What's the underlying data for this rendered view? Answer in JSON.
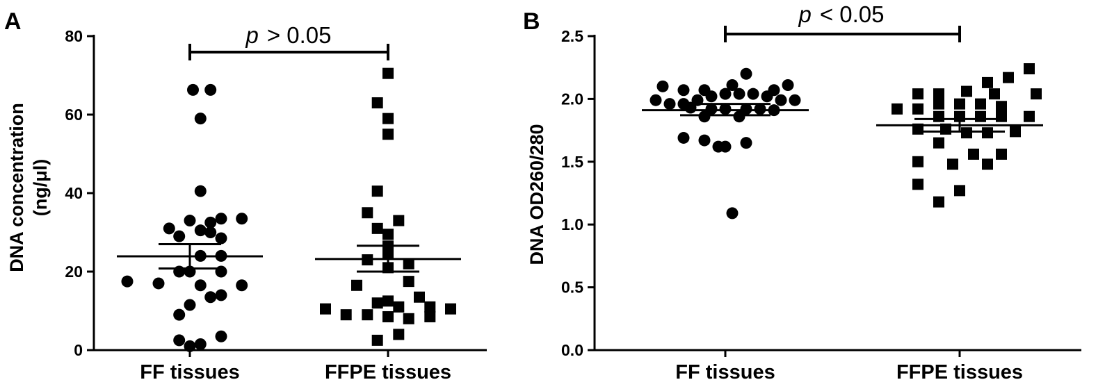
{
  "colors": {
    "marker": "#000000",
    "background": "#ffffff"
  },
  "chart_data": [
    {
      "type": "scatter",
      "panel_label": "A",
      "title": "",
      "ylabel_line1": "DNA concentration",
      "ylabel_line2": "(ng/μl)",
      "ylim": [
        0,
        80
      ],
      "yticks": [
        0,
        20,
        40,
        60,
        80
      ],
      "categories": [
        "FF tissues",
        "FFPE tissues"
      ],
      "significance": {
        "p": "p",
        "text": "> 0.05"
      },
      "series": [
        {
          "category": "FF tissues",
          "marker": "circle",
          "mean": 23.9,
          "sem": [
            20.8,
            27.0
          ],
          "points": [
            [
              0.05,
              66.3
            ],
            [
              0.33,
              66.3
            ],
            [
              0.17,
              59.0
            ],
            [
              0.17,
              40.5
            ],
            [
              0.0,
              33.0
            ],
            [
              0.5,
              33.5
            ],
            [
              0.33,
              32.5
            ],
            [
              0.17,
              30.5
            ],
            [
              0.33,
              30.0
            ],
            [
              -0.17,
              29.0
            ],
            [
              -0.33,
              31.0
            ],
            [
              0.5,
              28.5
            ],
            [
              0.83,
              33.5
            ],
            [
              0.17,
              24.0
            ],
            [
              0.5,
              24.0
            ],
            [
              -0.17,
              20.0
            ],
            [
              0.0,
              20.0
            ],
            [
              0.5,
              20.0
            ],
            [
              -1.0,
              17.5
            ],
            [
              -0.5,
              17.0
            ],
            [
              0.17,
              16.5
            ],
            [
              0.83,
              16.5
            ],
            [
              0.33,
              13.5
            ],
            [
              0.5,
              14.0
            ],
            [
              0.0,
              11.5
            ],
            [
              -0.17,
              9.0
            ],
            [
              0.5,
              3.5
            ],
            [
              -0.17,
              2.5
            ],
            [
              0.0,
              1.0
            ],
            [
              0.17,
              1.5
            ]
          ]
        },
        {
          "category": "FFPE tissues",
          "marker": "square",
          "mean": 23.2,
          "sem": [
            20.0,
            26.6
          ],
          "points": [
            [
              0.0,
              70.5
            ],
            [
              -0.17,
              63.0
            ],
            [
              0.0,
              59.0
            ],
            [
              0.0,
              55.0
            ],
            [
              -0.17,
              40.5
            ],
            [
              -0.33,
              35.0
            ],
            [
              0.17,
              33.0
            ],
            [
              -0.17,
              31.0
            ],
            [
              0.0,
              29.5
            ],
            [
              0.0,
              26.5
            ],
            [
              0.0,
              24.5
            ],
            [
              -0.33,
              23.0
            ],
            [
              0.33,
              22.0
            ],
            [
              0.0,
              21.0
            ],
            [
              0.33,
              17.5
            ],
            [
              -0.5,
              16.5
            ],
            [
              -0.17,
              12.0
            ],
            [
              0.0,
              12.5
            ],
            [
              0.17,
              11.0
            ],
            [
              0.5,
              13.5
            ],
            [
              0.67,
              11.0
            ],
            [
              1.0,
              10.5
            ],
            [
              -1.0,
              10.5
            ],
            [
              -0.67,
              9.0
            ],
            [
              -0.33,
              9.0
            ],
            [
              0.0,
              8.5
            ],
            [
              0.33,
              8.0
            ],
            [
              0.67,
              8.5
            ],
            [
              0.17,
              4.0
            ],
            [
              -0.17,
              2.5
            ]
          ]
        }
      ]
    },
    {
      "type": "scatter",
      "panel_label": "B",
      "title": "",
      "ylabel": "DNA OD260/280",
      "ylim": [
        0.0,
        2.5
      ],
      "yticks": [
        "0.0",
        "0.5",
        "1.0",
        "1.5",
        "2.0",
        "2.5"
      ],
      "categories": [
        "FF tissues",
        "FFPE tissues"
      ],
      "significance": {
        "p": "p",
        "text": "< 0.05"
      },
      "series": [
        {
          "category": "FF tissues",
          "marker": "circle",
          "mean": 1.91,
          "sem": [
            1.87,
            1.96
          ],
          "points": [
            [
              -0.9,
              2.1
            ],
            [
              -0.6,
              2.07
            ],
            [
              -0.3,
              2.07
            ],
            [
              0.1,
              2.11
            ],
            [
              0.3,
              2.2
            ],
            [
              0.7,
              2.07
            ],
            [
              0.9,
              2.11
            ],
            [
              -1.0,
              1.99
            ],
            [
              -0.8,
              1.96
            ],
            [
              -0.6,
              1.96
            ],
            [
              -0.4,
              1.99
            ],
            [
              -0.2,
              2.02
            ],
            [
              0.0,
              2.04
            ],
            [
              0.2,
              2.04
            ],
            [
              0.4,
              2.04
            ],
            [
              0.6,
              2.02
            ],
            [
              0.8,
              1.99
            ],
            [
              1.0,
              1.99
            ],
            [
              -0.5,
              1.93
            ],
            [
              -0.2,
              1.92
            ],
            [
              0.0,
              1.92
            ],
            [
              0.3,
              1.92
            ],
            [
              0.5,
              1.92
            ],
            [
              0.7,
              1.91
            ],
            [
              -0.3,
              1.86
            ],
            [
              0.2,
              1.86
            ],
            [
              -0.6,
              1.69
            ],
            [
              -0.3,
              1.67
            ],
            [
              0.0,
              1.62
            ],
            [
              -0.1,
              1.62
            ],
            [
              0.3,
              1.65
            ],
            [
              0.1,
              1.09
            ]
          ]
        },
        {
          "category": "FFPE tissues",
          "marker": "square",
          "mean": 1.79,
          "sem": [
            1.74,
            1.84
          ],
          "points": [
            [
              1.0,
              2.24
            ],
            [
              0.7,
              2.17
            ],
            [
              0.4,
              2.13
            ],
            [
              -0.6,
              2.04
            ],
            [
              -0.3,
              2.04
            ],
            [
              0.1,
              2.06
            ],
            [
              0.5,
              2.04
            ],
            [
              1.1,
              2.04
            ],
            [
              -0.3,
              1.96
            ],
            [
              0.0,
              1.96
            ],
            [
              0.3,
              1.96
            ],
            [
              0.6,
              1.94
            ],
            [
              -0.6,
              1.92
            ],
            [
              -0.9,
              1.92
            ],
            [
              -0.3,
              1.86
            ],
            [
              0.0,
              1.86
            ],
            [
              0.3,
              1.86
            ],
            [
              0.6,
              1.86
            ],
            [
              1.0,
              1.86
            ],
            [
              -0.6,
              1.76
            ],
            [
              -0.2,
              1.76
            ],
            [
              0.1,
              1.73
            ],
            [
              0.4,
              1.73
            ],
            [
              0.8,
              1.74
            ],
            [
              -0.3,
              1.65
            ],
            [
              0.2,
              1.56
            ],
            [
              0.6,
              1.56
            ],
            [
              -0.6,
              1.5
            ],
            [
              -0.1,
              1.48
            ],
            [
              0.4,
              1.48
            ],
            [
              -0.6,
              1.32
            ],
            [
              0.0,
              1.27
            ],
            [
              -0.3,
              1.18
            ]
          ]
        }
      ]
    }
  ]
}
